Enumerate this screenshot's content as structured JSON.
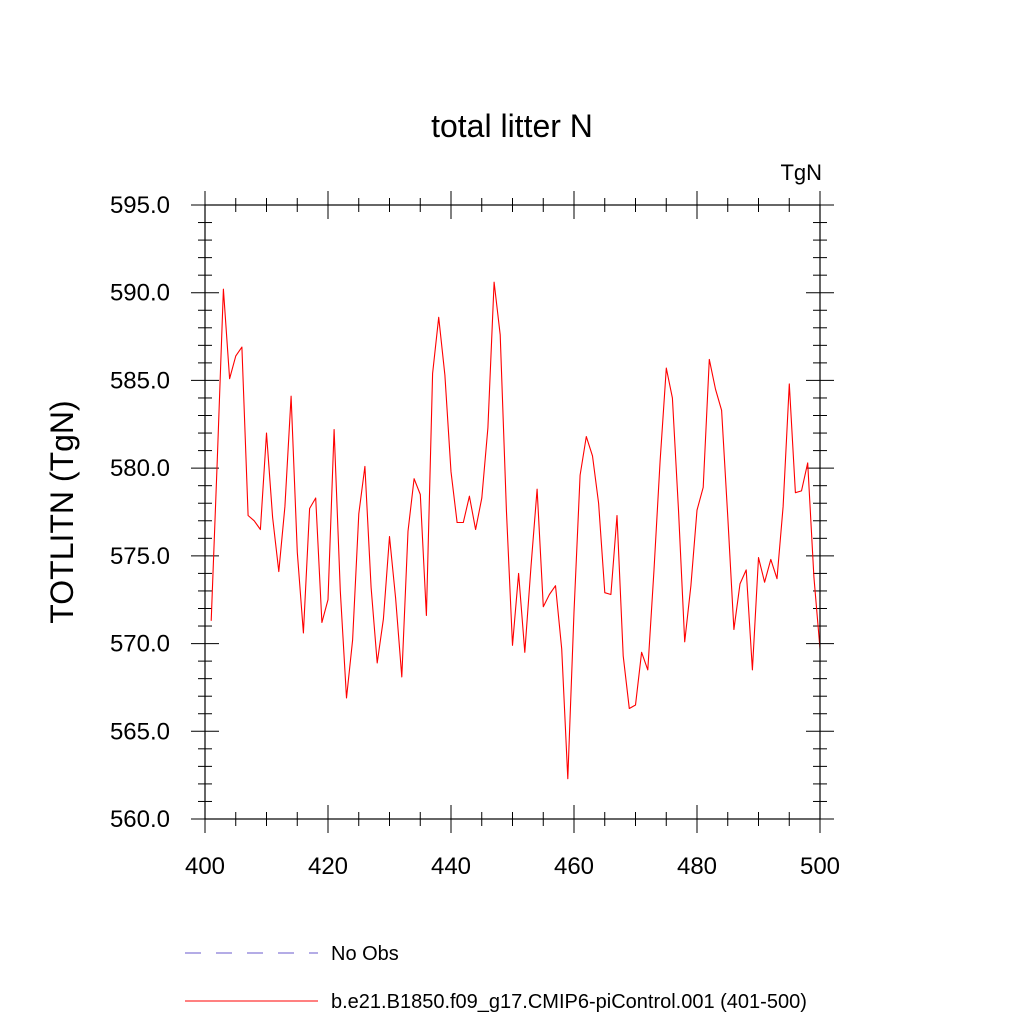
{
  "chart_data": {
    "type": "line",
    "title": "total litter N",
    "units_label": "TgN",
    "ylabel": "TOTLITN  (TgN)",
    "xlabel": "",
    "xlim": [
      400,
      500
    ],
    "ylim": [
      560,
      595
    ],
    "x_ticks": [
      400,
      420,
      440,
      460,
      480,
      500
    ],
    "x_tick_labels": [
      "400",
      "420",
      "440",
      "460",
      "480",
      "500"
    ],
    "y_ticks": [
      560,
      565,
      570,
      575,
      580,
      585,
      590,
      595
    ],
    "y_tick_labels": [
      "560.0",
      "565.0",
      "570.0",
      "575.0",
      "580.0",
      "585.0",
      "590.0",
      "595.0"
    ],
    "grid": false,
    "legend_placement": "bottom",
    "series": [
      {
        "name": "b.e21.B1850.f09_g17.CMIP6-piControl.001 (401-500)",
        "color": "#ff0000",
        "style": "solid",
        "x": [
          401,
          402,
          403,
          404,
          405,
          406,
          407,
          408,
          409,
          410,
          411,
          412,
          413,
          414,
          415,
          416,
          417,
          418,
          419,
          420,
          421,
          422,
          423,
          424,
          425,
          426,
          427,
          428,
          429,
          430,
          431,
          432,
          433,
          434,
          435,
          436,
          437,
          438,
          439,
          440,
          441,
          442,
          443,
          444,
          445,
          446,
          447,
          448,
          449,
          450,
          451,
          452,
          453,
          454,
          455,
          456,
          457,
          458,
          459,
          460,
          461,
          462,
          463,
          464,
          465,
          466,
          467,
          468,
          469,
          470,
          471,
          472,
          473,
          474,
          475,
          476,
          477,
          478,
          479,
          480,
          481,
          482,
          483,
          484,
          485,
          486,
          487,
          488,
          489,
          490,
          491,
          492,
          493,
          494,
          495,
          496,
          497,
          498,
          499,
          500
        ],
        "y": [
          571.3,
          580.5,
          590.2,
          585.1,
          586.4,
          586.9,
          577.3,
          577.0,
          576.5,
          582.0,
          577.2,
          574.1,
          577.8,
          584.1,
          575.2,
          570.6,
          577.7,
          578.3,
          571.2,
          572.5,
          582.2,
          573.0,
          566.9,
          570.2,
          577.4,
          580.1,
          573.2,
          568.9,
          571.4,
          576.1,
          572.6,
          568.1,
          576.4,
          579.4,
          578.5,
          571.6,
          585.4,
          588.6,
          585.3,
          579.8,
          576.9,
          576.9,
          578.4,
          576.5,
          578.3,
          582.3,
          590.6,
          587.6,
          577.6,
          569.9,
          574.0,
          569.5,
          574.4,
          578.8,
          572.1,
          572.8,
          573.3,
          569.7,
          562.3,
          571.8,
          579.6,
          581.8,
          580.7,
          578.0,
          572.9,
          572.8,
          577.3,
          569.3,
          566.3,
          566.5,
          569.5,
          568.5,
          574.2,
          580.4,
          585.7,
          584.0,
          577.6,
          570.1,
          573.3,
          577.6,
          578.9,
          586.2,
          584.5,
          583.3,
          577.2,
          570.8,
          573.4,
          574.2,
          568.5,
          574.9,
          573.5,
          574.8,
          573.7,
          577.8,
          584.8,
          578.6,
          578.7,
          580.3,
          573.8,
          569.7
        ]
      }
    ],
    "legend": [
      {
        "label": "No Obs",
        "color": "#6a5acd",
        "style": "dashed"
      },
      {
        "label": "b.e21.B1850.f09_g17.CMIP6-piControl.001 (401-500)",
        "color": "#ff0000",
        "style": "solid"
      }
    ]
  }
}
